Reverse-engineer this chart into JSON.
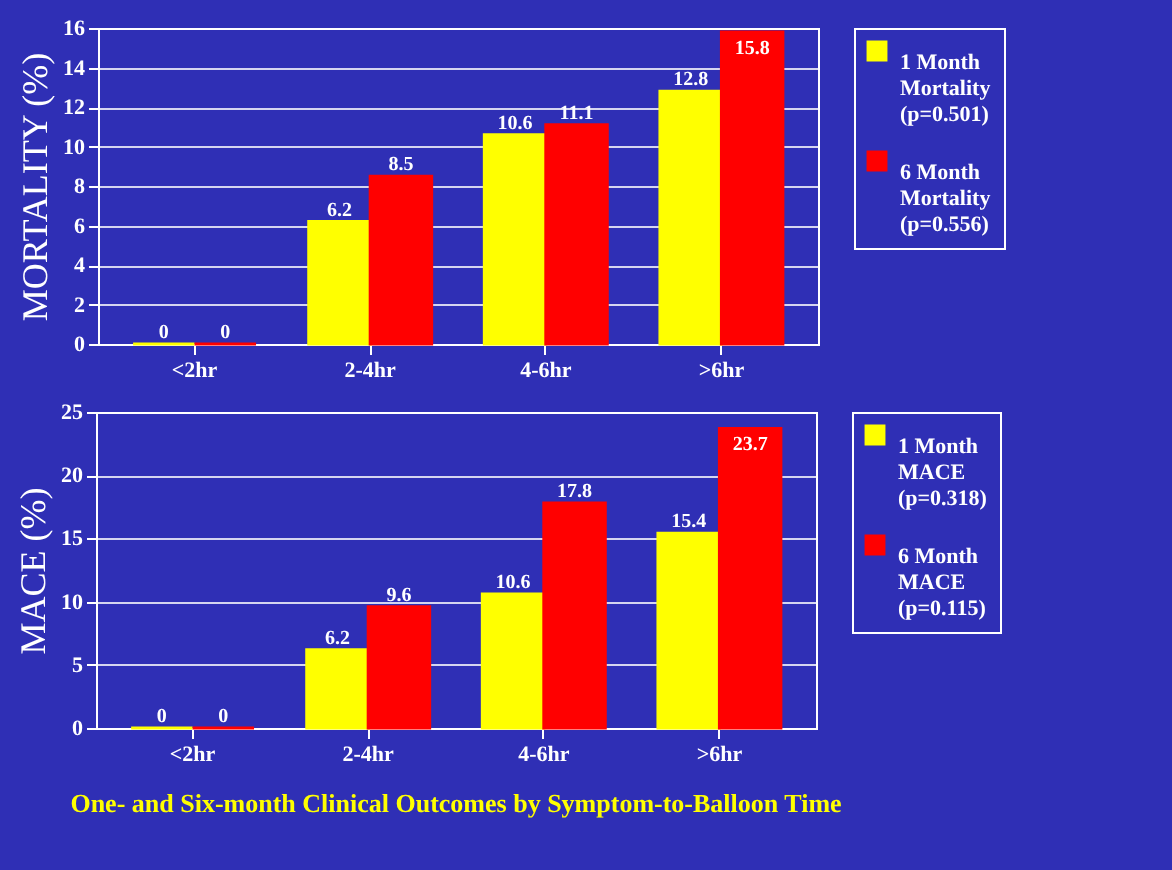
{
  "chart_data": [
    {
      "type": "bar",
      "ylabel": "MORTALITY (%)",
      "categories": [
        "<2hr",
        "2-4hr",
        "4-6hr",
        ">6hr"
      ],
      "series": [
        {
          "name": "1 Month Mortality (p=0.501)",
          "color": "#ffff00",
          "values": [
            0,
            6.2,
            10.6,
            12.8
          ]
        },
        {
          "name": "6 Month Mortality (p=0.556)",
          "color": "#ff0000",
          "values": [
            0,
            8.5,
            11.1,
            15.8
          ]
        }
      ],
      "ylim": [
        0,
        16
      ],
      "yticks": [
        0,
        2,
        4,
        6,
        8,
        10,
        12,
        14,
        16
      ],
      "grid": "y",
      "legend": "right",
      "data_labels": true
    },
    {
      "type": "bar",
      "ylabel": "MACE (%)",
      "categories": [
        "<2hr",
        "2-4hr",
        "4-6hr",
        ">6hr"
      ],
      "series": [
        {
          "name": "1 Month MACE (p=0.318)",
          "color": "#ffff00",
          "values": [
            0,
            6.2,
            10.6,
            15.4
          ]
        },
        {
          "name": "6 Month MACE (p=0.115)",
          "color": "#ff0000",
          "values": [
            0,
            9.6,
            17.8,
            23.7
          ]
        }
      ],
      "ylim": [
        0,
        25
      ],
      "yticks": [
        0,
        5,
        10,
        15,
        20,
        25
      ],
      "grid": "y",
      "legend": "right",
      "data_labels": true,
      "annotations": [
        "One- and Six-month Clinical Outcomes by Symptom-to-Balloon Time"
      ]
    }
  ]
}
